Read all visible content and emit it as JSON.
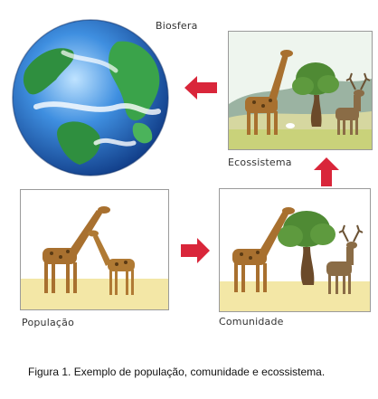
{
  "labels": {
    "biosphere": "Biosfera",
    "ecosystem": "Ecossistema",
    "population": "População",
    "community": "Comunidade"
  },
  "caption": "Figura 1. Exemplo de população, comunidade e ecossistema.",
  "colors": {
    "arrow": "#d9263a",
    "ground": "#f3e7a6",
    "sky": "#eaf3ea",
    "giraffe": "#b07a34",
    "tree_foliage": "#5a8a3a",
    "ocean": "#2f74c7",
    "land": "#3a9a4a"
  },
  "icons": [
    "globe-icon",
    "giraffe-icon",
    "tree-icon",
    "deer-icon",
    "arrow-left-icon",
    "arrow-right-icon",
    "arrow-up-icon"
  ]
}
